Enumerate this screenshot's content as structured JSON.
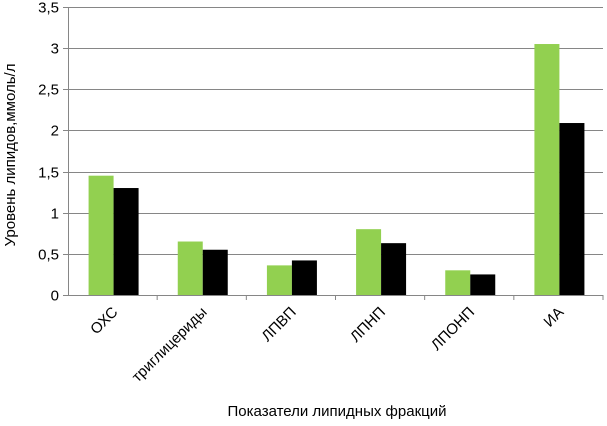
{
  "chart_data": {
    "type": "bar",
    "categories": [
      "ОХС",
      "триглицериды",
      "ЛПВП",
      "ЛПНП",
      "ЛПОНП",
      "ИА"
    ],
    "series": [
      {
        "values": [
          1.45,
          0.65,
          0.36,
          0.8,
          0.3,
          3.05
        ],
        "color": "#92D050"
      },
      {
        "values": [
          1.3,
          0.55,
          0.42,
          0.63,
          0.25,
          2.09
        ],
        "color": "#000000"
      }
    ],
    "xlabel": "Показатели  липидных фракций",
    "ylabel": "Уровень липидов,ммоль/л",
    "ylim": [
      0,
      3.5
    ],
    "yticks": [
      "0",
      "0,5",
      "1",
      "1,5",
      "2",
      "2,5",
      "3",
      "3,5"
    ],
    "grid": true,
    "legend": "none"
  }
}
